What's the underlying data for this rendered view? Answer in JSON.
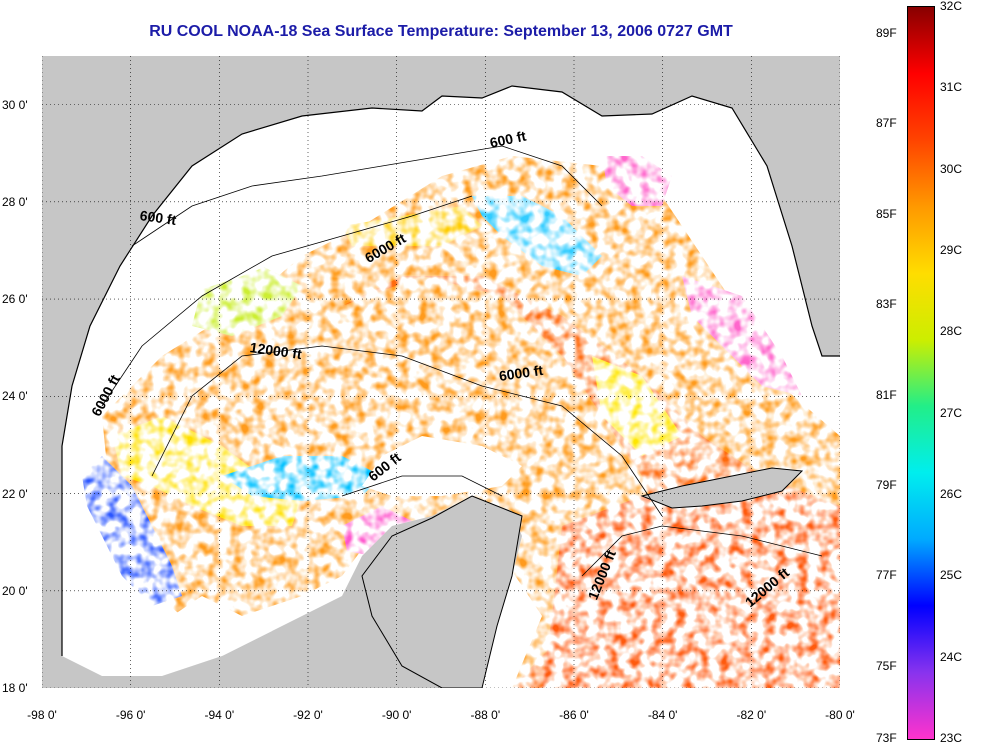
{
  "title": "RU COOL  NOAA-18  Sea Surface Temperature:  September 13, 2006 0727 GMT",
  "map": {
    "lon_range": [
      -98,
      -80
    ],
    "lat_range": [
      18,
      31
    ],
    "x_ticks": [
      "-98 0'",
      "-96 0'",
      "-94 0'",
      "-92 0'",
      "-90 0'",
      "-88 0'",
      "-86 0'",
      "-84 0'",
      "-82 0'",
      "-80 0'"
    ],
    "y_ticks": [
      "30 0'",
      "28 0'",
      "26 0'",
      "24 0'",
      "22 0'",
      "20 0'",
      "18 0'"
    ],
    "grid": "dotted",
    "land_color": "#c6c6c6",
    "cloud_color": "#ffffff",
    "contour_labels": [
      {
        "text": "600 ft",
        "lon": -87.9,
        "lat": 29.2,
        "angle": -12
      },
      {
        "text": "600 ft",
        "lon": -95.8,
        "lat": 27.7,
        "angle": 8
      },
      {
        "text": "6000 ft",
        "lon": -90.7,
        "lat": 26.8,
        "angle": -30
      },
      {
        "text": "12000 ft",
        "lon": -93.3,
        "lat": 25.0,
        "angle": 8
      },
      {
        "text": "6000 ft",
        "lon": -87.7,
        "lat": 24.4,
        "angle": -8
      },
      {
        "text": "6000 ft",
        "lon": -96.8,
        "lat": 23.6,
        "angle": -62
      },
      {
        "text": "600 ft",
        "lon": -90.6,
        "lat": 22.3,
        "angle": -38
      },
      {
        "text": "12000 ft",
        "lon": -85.6,
        "lat": 19.8,
        "angle": -68
      },
      {
        "text": "12000 ft",
        "lon": -82.1,
        "lat": 19.7,
        "angle": -40
      }
    ]
  },
  "colorbar": {
    "labels_f": [
      "89F",
      "87F",
      "85F",
      "83F",
      "81F",
      "79F",
      "77F",
      "75F",
      "73F"
    ],
    "labels_c": [
      "32C",
      "31C",
      "30C",
      "29C",
      "28C",
      "27C",
      "26C",
      "25C",
      "24C",
      "23C"
    ],
    "range_c": [
      23,
      32
    ],
    "colors": [
      "#ff33cc",
      "#8833ee",
      "#0000ff",
      "#00aaff",
      "#00eeee",
      "#22ee88",
      "#ccee00",
      "#ffdd00",
      "#ff9900",
      "#ff4400",
      "#ff0000",
      "#880000"
    ]
  }
}
